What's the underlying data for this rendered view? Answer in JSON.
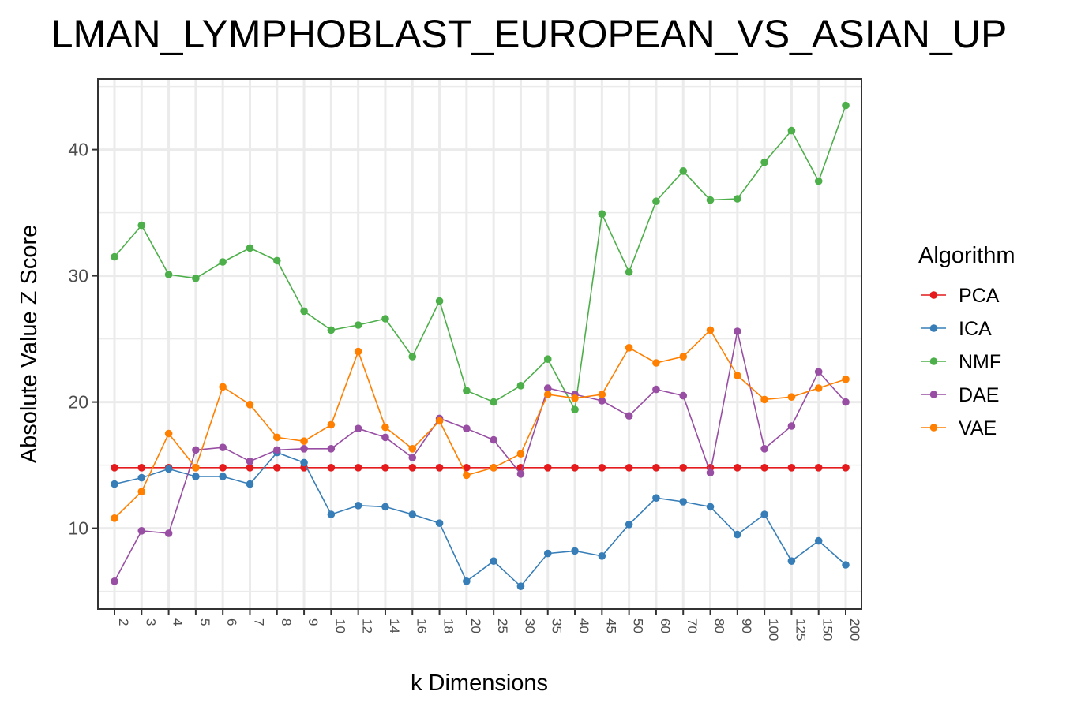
{
  "chart_data": {
    "type": "line",
    "title": "LMAN_LYMPHOBLAST_EUROPEAN_VS_ASIAN_UP",
    "xlabel": "k Dimensions",
    "ylabel": "Absolute Value Z Score",
    "categories": [
      "2",
      "3",
      "4",
      "5",
      "6",
      "7",
      "8",
      "9",
      "10",
      "12",
      "14",
      "16",
      "18",
      "20",
      "25",
      "30",
      "35",
      "40",
      "45",
      "50",
      "60",
      "70",
      "80",
      "90",
      "100",
      "125",
      "150",
      "200"
    ],
    "yticks": [
      10,
      20,
      30,
      40
    ],
    "ylim": [
      3.6,
      45.6
    ],
    "grid": true,
    "legend": {
      "title": "Algorithm",
      "position": "right"
    },
    "series": [
      {
        "name": "PCA",
        "color": "#e41a1c",
        "values": [
          14.8,
          14.8,
          14.8,
          14.8,
          14.8,
          14.8,
          14.8,
          14.8,
          14.8,
          14.8,
          14.8,
          14.8,
          14.8,
          14.8,
          14.8,
          14.8,
          14.8,
          14.8,
          14.8,
          14.8,
          14.8,
          14.8,
          14.8,
          14.8,
          14.8,
          14.8,
          14.8,
          14.8
        ]
      },
      {
        "name": "ICA",
        "color": "#377eb8",
        "values": [
          13.5,
          14.0,
          14.7,
          14.1,
          14.1,
          13.5,
          16.0,
          15.2,
          11.1,
          11.8,
          11.7,
          11.1,
          10.4,
          5.8,
          7.4,
          5.4,
          8.0,
          8.2,
          7.8,
          10.3,
          12.4,
          12.1,
          11.7,
          9.5,
          11.1,
          7.4,
          9.0,
          7.1
        ]
      },
      {
        "name": "NMF",
        "color": "#4daf4a",
        "values": [
          31.5,
          34.0,
          30.1,
          29.8,
          31.1,
          32.2,
          31.2,
          27.2,
          25.7,
          26.1,
          26.6,
          23.6,
          28.0,
          20.9,
          20.0,
          21.3,
          23.4,
          19.4,
          34.9,
          30.3,
          35.9,
          38.3,
          36.0,
          36.1,
          39.0,
          41.5,
          37.5,
          43.5
        ]
      },
      {
        "name": "DAE",
        "color": "#984ea3",
        "values": [
          5.8,
          9.8,
          9.6,
          16.2,
          16.4,
          15.3,
          16.2,
          16.3,
          16.3,
          17.9,
          17.2,
          15.6,
          18.7,
          17.9,
          17.0,
          14.3,
          21.1,
          20.6,
          20.1,
          18.9,
          21.0,
          20.5,
          14.4,
          25.6,
          16.3,
          18.1,
          22.4,
          20.0
        ]
      },
      {
        "name": "VAE",
        "color": "#ff7f00",
        "values": [
          10.8,
          12.9,
          17.5,
          14.8,
          21.2,
          19.8,
          17.2,
          16.9,
          18.2,
          24.0,
          18.0,
          16.3,
          18.5,
          14.2,
          14.8,
          15.9,
          20.6,
          20.3,
          20.6,
          24.3,
          23.1,
          23.6,
          25.7,
          22.1,
          20.2,
          20.4,
          21.1,
          21.8
        ]
      }
    ]
  }
}
